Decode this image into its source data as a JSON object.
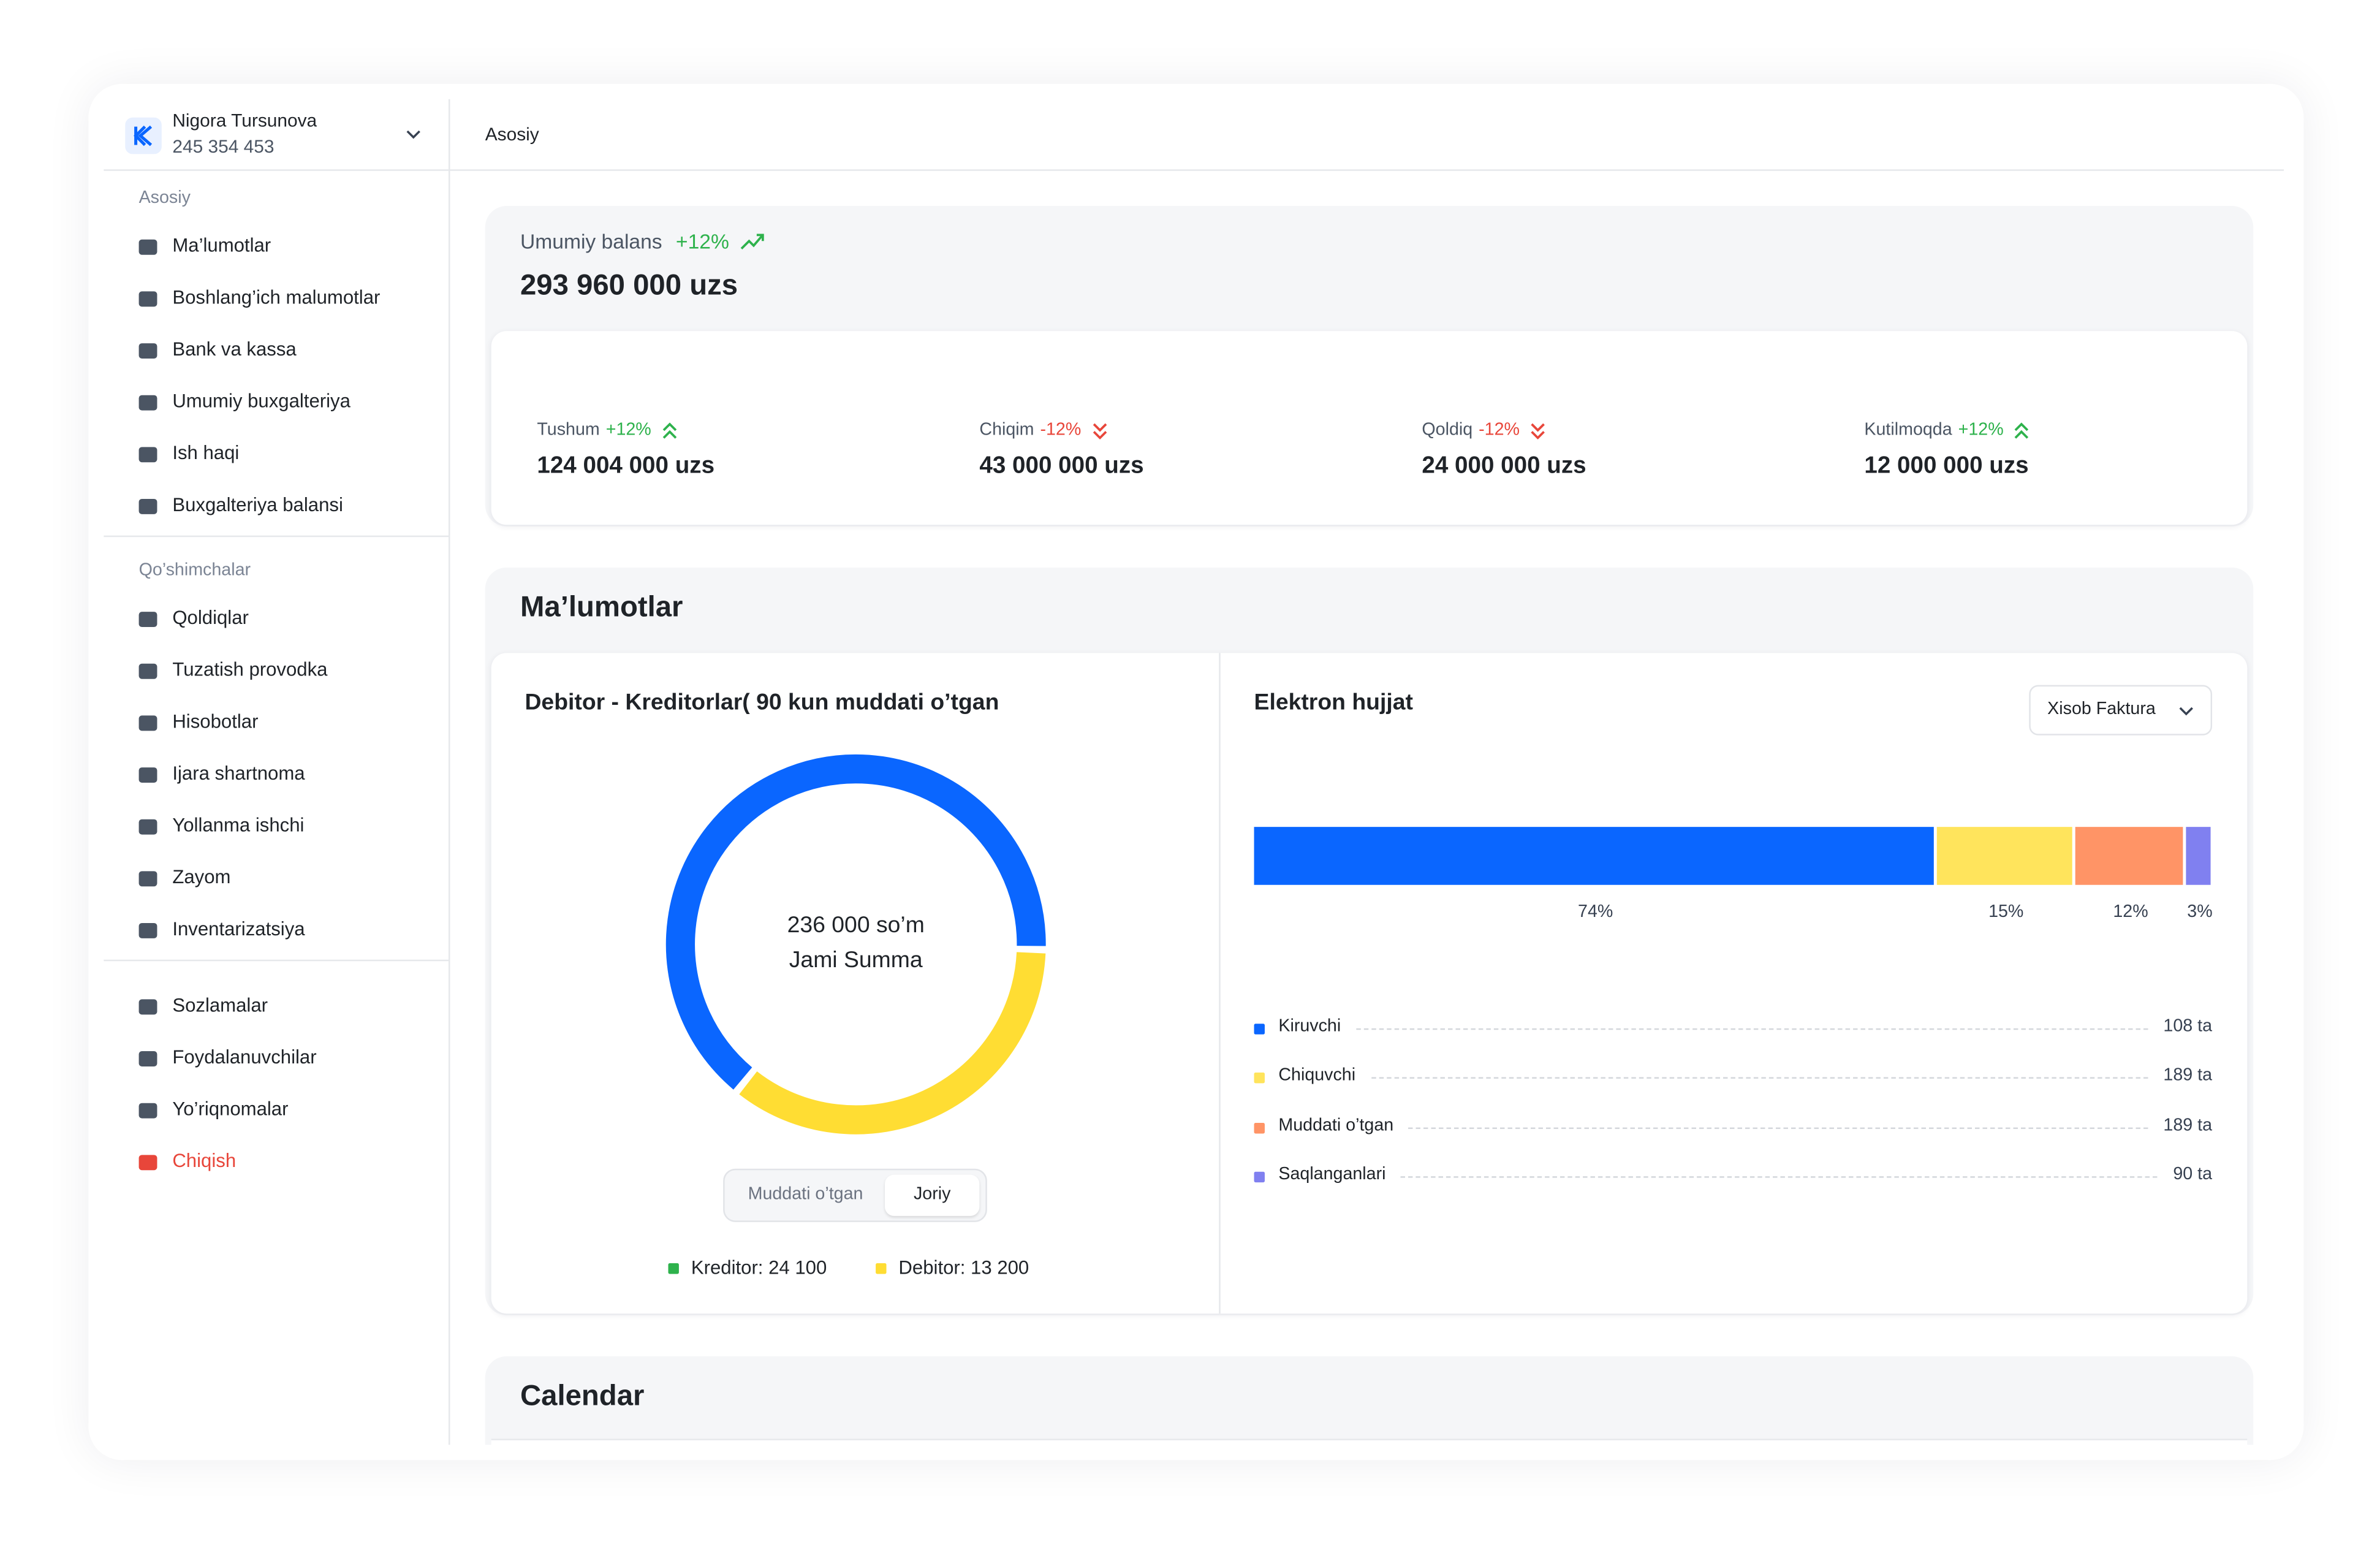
{
  "user": {
    "name": "Nigora Tursunova",
    "phone": "245 354 453"
  },
  "sidebar": {
    "sections": [
      {
        "title": "Asosiy",
        "items": [
          "Ma’lumotlar",
          "Boshlang’ich malumotlar",
          "Bank va kassa",
          "Umumiy buxgalteriya",
          "Ish haqi",
          "Buxgalteriya balansi"
        ]
      },
      {
        "title": "Qo’shimchalar",
        "items": [
          "Qoldiqlar",
          "Tuzatish provodka",
          "Hisobotlar",
          "Ijara shartnoma",
          "Yollanma ishchi",
          "Zayom",
          "Inventarizatsiya"
        ]
      },
      {
        "items": [
          "Sozlamalar",
          "Foydalanuvchilar",
          "Yo’riqnomalar",
          "Chiqish"
        ]
      }
    ]
  },
  "breadcrumb": "Asosiy",
  "balance": {
    "label": "Umumiy balans",
    "change": "+12%",
    "value": "293 960 000 uzs"
  },
  "stats": [
    {
      "label": "Tushum",
      "change": "+12%",
      "trend": "up",
      "value": "124 004 000 uzs"
    },
    {
      "label": "Chiqim",
      "change": "-12%",
      "trend": "down",
      "value": "43 000 000 uzs"
    },
    {
      "label": "Qoldiq",
      "change": "-12%",
      "trend": "down",
      "value": "24 000 000 uzs"
    },
    {
      "label": "Kutilmoqda",
      "change": "+12%",
      "trend": "up",
      "value": "12 000 000 uzs"
    }
  ],
  "malumotlar": {
    "title": "Ma’lumotlar",
    "debitor": {
      "title": "Debitor - Kreditorlar( 90 kun muddati o’tgan",
      "center_value": "236 000 so’m",
      "center_label": "Jami Summa",
      "tabs": [
        "Muddati o’tgan",
        "Joriy"
      ],
      "active_tab": 1,
      "legend": [
        {
          "label": "Kreditor: 24 100",
          "value": 24100,
          "color": "#2eb24c",
          "arc_color": "#0a66ff"
        },
        {
          "label": "Debitor: 13 200",
          "value": 13200,
          "color": "#ffdd33",
          "arc_color": "#ffdd33"
        }
      ]
    },
    "elektron": {
      "title": "Elektron hujjat",
      "dropdown": "Xisob Faktura",
      "bar": {
        "type": "bar",
        "values": [
          74,
          15,
          12,
          3
        ],
        "value_labels": [
          "74%",
          "15%",
          "12%",
          "3%"
        ],
        "colors": [
          "#0a66ff",
          "#ffe45c",
          "#ff9466",
          "#8080f0"
        ]
      },
      "legend": [
        {
          "name": "Kiruvchi",
          "count": "108 ta"
        },
        {
          "name": "Chiquvchi",
          "count": "189 ta"
        },
        {
          "name": "Muddati o’tgan",
          "count": "189 ta"
        },
        {
          "name": "Saqlanganlari",
          "count": "90 ta"
        }
      ]
    }
  },
  "calendar": {
    "title": "Calendar"
  }
}
